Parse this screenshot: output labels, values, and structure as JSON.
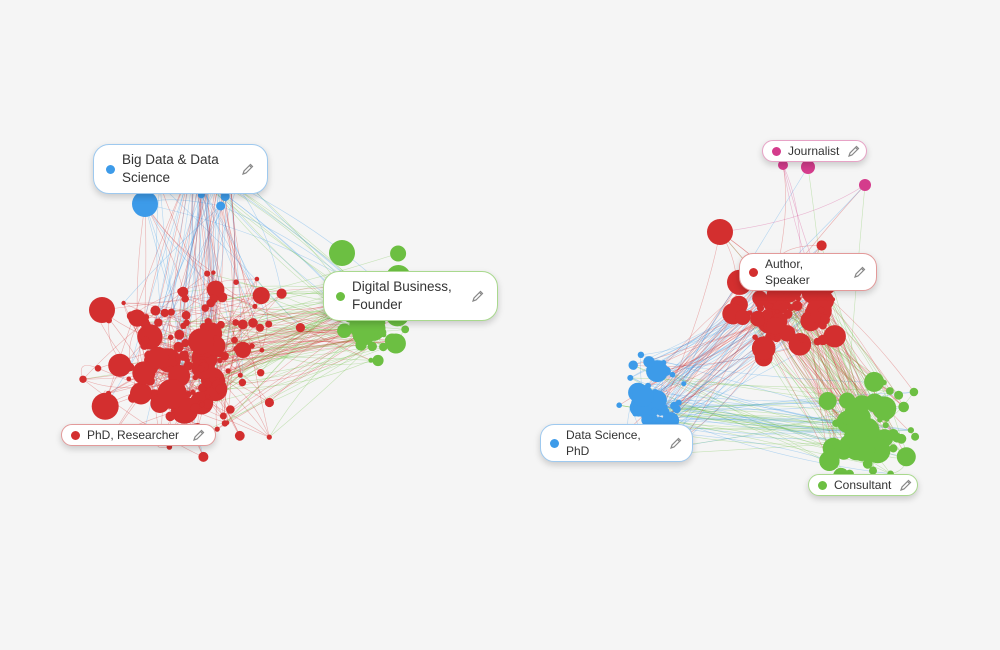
{
  "colors": {
    "red": "#d32f2f",
    "blue": "#3d9be9",
    "green": "#6cbf42",
    "pink": "#d43c8c",
    "background": "#f5f5f5"
  },
  "left_network": {
    "labels": [
      {
        "id": "big-data",
        "text": "Big Data & Data Science",
        "color": "#3d9be9"
      },
      {
        "id": "digital-business",
        "text": "Digital Business, Founder",
        "color": "#6cbf42"
      },
      {
        "id": "phd-researcher",
        "text": "PhD, Researcher",
        "color": "#d32f2f"
      }
    ]
  },
  "right_network": {
    "labels": [
      {
        "id": "journalist",
        "text": "Journalist",
        "color": "#d43c8c"
      },
      {
        "id": "author-speaker",
        "text": "Author, Speaker",
        "color": "#d32f2f"
      },
      {
        "id": "data-science-phd",
        "text": "Data Science, PhD",
        "color": "#3d9be9"
      },
      {
        "id": "consultant",
        "text": "Consultant",
        "color": "#6cbf42"
      }
    ]
  },
  "icons": {
    "edit": "pencil-icon"
  }
}
